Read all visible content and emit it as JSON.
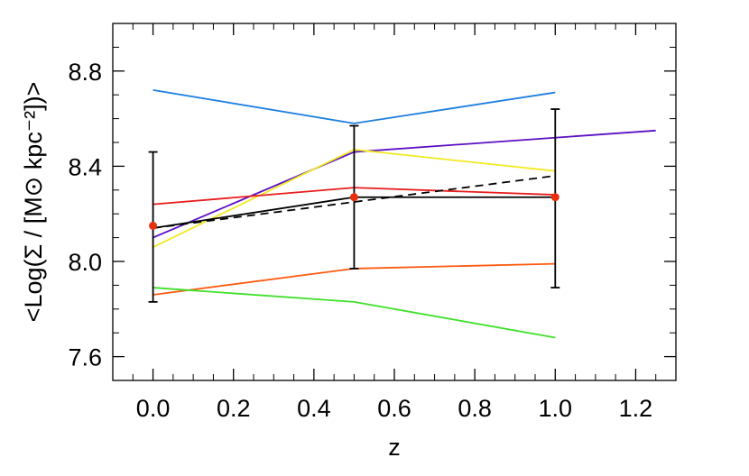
{
  "chart_data": {
    "type": "line",
    "xlabel": "z",
    "ylabel": "<Log(Σ / [M⊙ kpc⁻²])>",
    "xlim": [
      -0.1,
      1.3
    ],
    "ylim": [
      7.5,
      9.0
    ],
    "x_ticks": [
      0.0,
      0.2,
      0.4,
      0.6,
      0.8,
      1.0,
      1.2
    ],
    "x_tick_labels": [
      "0.0",
      "0.2",
      "0.4",
      "0.6",
      "0.8",
      "1.0",
      "1.2"
    ],
    "y_ticks": [
      7.6,
      8.0,
      8.4,
      8.8
    ],
    "y_tick_labels": [
      "7.6",
      "8.0",
      "8.4",
      "8.8"
    ],
    "grid": false,
    "series": [
      {
        "color": "#1f7fe0",
        "style": "solid",
        "x": [
          0.0,
          0.5,
          1.0
        ],
        "y": [
          8.72,
          8.58,
          8.71
        ]
      },
      {
        "color": "#5b0fc4",
        "style": "solid",
        "x": [
          0.0,
          0.5,
          1.25
        ],
        "y": [
          8.1,
          8.46,
          8.55
        ]
      },
      {
        "color": "#f2ea22",
        "style": "solid",
        "x": [
          0.0,
          0.5,
          1.0
        ],
        "y": [
          8.06,
          8.47,
          8.38
        ]
      },
      {
        "color": "#e81d1d",
        "style": "solid",
        "x": [
          0.0,
          0.5,
          1.0
        ],
        "y": [
          8.24,
          8.31,
          8.28
        ]
      },
      {
        "color": "#000000",
        "style": "solid",
        "x": [
          0.0,
          0.5,
          1.0
        ],
        "y": [
          8.14,
          8.27,
          8.27
        ]
      },
      {
        "color": "#000000",
        "style": "dashed",
        "x": [
          0.0,
          1.0
        ],
        "y": [
          8.14,
          8.36
        ]
      },
      {
        "color": "#ff5a10",
        "style": "solid",
        "x": [
          0.0,
          0.5,
          1.0
        ],
        "y": [
          7.86,
          7.97,
          7.99
        ]
      },
      {
        "color": "#3fe02a",
        "style": "solid",
        "x": [
          0.0,
          0.5,
          1.0
        ],
        "y": [
          7.89,
          7.83,
          7.68
        ]
      }
    ],
    "points": {
      "color": "#e8300e",
      "x": [
        0.0,
        0.5,
        1.0
      ],
      "y": [
        8.15,
        8.27,
        8.27
      ],
      "yerr_low": [
        7.83,
        7.97,
        7.89
      ],
      "yerr_high": [
        8.46,
        8.57,
        8.64
      ]
    }
  }
}
